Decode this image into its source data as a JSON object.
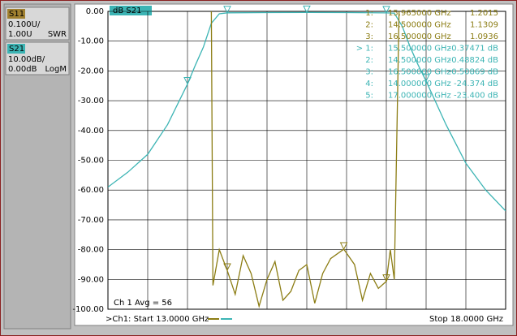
{
  "chart_data": {
    "type": "line",
    "trace_title": "dB S21",
    "xlim": [
      13.0,
      18.0
    ],
    "ylim": [
      -100,
      0
    ],
    "yticks": [
      {
        "value": 0,
        "label": "0.00"
      },
      {
        "value": -10,
        "label": "-10.00"
      },
      {
        "value": -20,
        "label": "-20.00"
      },
      {
        "value": -30,
        "label": "-30.00"
      },
      {
        "value": -40,
        "label": "-40.00"
      },
      {
        "value": -50,
        "label": "-50.00"
      },
      {
        "value": -60,
        "label": "-60.00"
      },
      {
        "value": -70,
        "label": "-70.00"
      },
      {
        "value": -80,
        "label": "-80.00"
      },
      {
        "value": -90,
        "label": "-90.00"
      },
      {
        "value": -100,
        "label": "-100.00"
      }
    ],
    "y2lim": [
      1.0,
      2.0
    ],
    "grid": true,
    "series": [
      {
        "name": "S21",
        "color": "#3cb4b4",
        "x": [
          13.0,
          13.25,
          13.5,
          13.75,
          14.0,
          14.1,
          14.2,
          14.3,
          14.4,
          14.5,
          15.0,
          15.5,
          16.0,
          16.5,
          16.6,
          16.7,
          16.8,
          16.9,
          17.0,
          17.25,
          17.5,
          17.75,
          18.0
        ],
        "values": [
          -59,
          -54,
          -48,
          -38,
          -24.4,
          -18,
          -12,
          -4,
          -0.8,
          -0.49,
          -0.4,
          -0.37,
          -0.4,
          -0.51,
          -0.6,
          -5,
          -12,
          -18,
          -23.4,
          -38,
          -51,
          -60,
          -67
        ]
      },
      {
        "name": "S11",
        "color": "#8c7d14",
        "axis": "y2",
        "x": [
          14.3,
          14.32,
          14.4,
          14.5,
          14.6,
          14.7,
          14.8,
          14.9,
          15.0,
          15.1,
          15.2,
          15.3,
          15.4,
          15.5,
          15.6,
          15.7,
          15.8,
          15.965,
          16.1,
          16.2,
          16.3,
          16.4,
          16.5,
          16.55,
          16.6,
          16.64,
          16.66
        ],
        "values": [
          2.0,
          1.08,
          1.2,
          1.13,
          1.05,
          1.18,
          1.12,
          1.01,
          1.1,
          1.16,
          1.03,
          1.06,
          1.13,
          1.15,
          1.02,
          1.12,
          1.17,
          1.2015,
          1.15,
          1.03,
          1.12,
          1.07,
          1.0936,
          1.2,
          1.1,
          1.7,
          2.0
        ]
      }
    ],
    "markers": [
      {
        "series": 1,
        "id": "1:",
        "freq_label": "15.965000 GHz",
        "x": 15.965,
        "value": 1.2015,
        "value_label": "1.2015"
      },
      {
        "series": 1,
        "id": "2:",
        "freq_label": "14.500000 GHz",
        "x": 14.5,
        "value": 1.1309,
        "value_label": "1.1309"
      },
      {
        "series": 1,
        "id": "3:",
        "freq_label": "16.500000 GHz",
        "x": 16.5,
        "value": 1.0936,
        "value_label": "1.0936"
      },
      {
        "series": 0,
        "id": "> 1:",
        "freq_label": "15.500000 GHz",
        "x": 15.5,
        "value": -0.37471,
        "value_label": "-0.37471 dB"
      },
      {
        "series": 0,
        "id": "2:",
        "freq_label": "14.500000 GHz",
        "x": 14.5,
        "value": -0.48824,
        "value_label": "-0.48824 dB"
      },
      {
        "series": 0,
        "id": "3:",
        "freq_label": "16.500000 GHz",
        "x": 16.5,
        "value": -0.50869,
        "value_label": "-0.50869 dB"
      },
      {
        "series": 0,
        "id": "4:",
        "freq_label": "14.000000 GHz",
        "x": 14.0,
        "value": -24.374,
        "value_label": "-24.374 dB"
      },
      {
        "series": 0,
        "id": "5:",
        "freq_label": "17.000000 GHz",
        "x": 17.0,
        "value": -23.4,
        "value_label": "-23.400 dB"
      }
    ],
    "average_label": "Ch 1 Avg =  56",
    "start_label": ">Ch1: Start  13.0000 GHz",
    "stop_label": "Stop  18.0000 GHz"
  },
  "side_panel": {
    "s11": {
      "name": "S11",
      "scale": "0.100U/",
      "ref": "1.00U",
      "format": "SWR"
    },
    "s21": {
      "name": "S21",
      "scale": "10.00dB/",
      "ref": "0.00dB",
      "format": "LogM"
    }
  }
}
